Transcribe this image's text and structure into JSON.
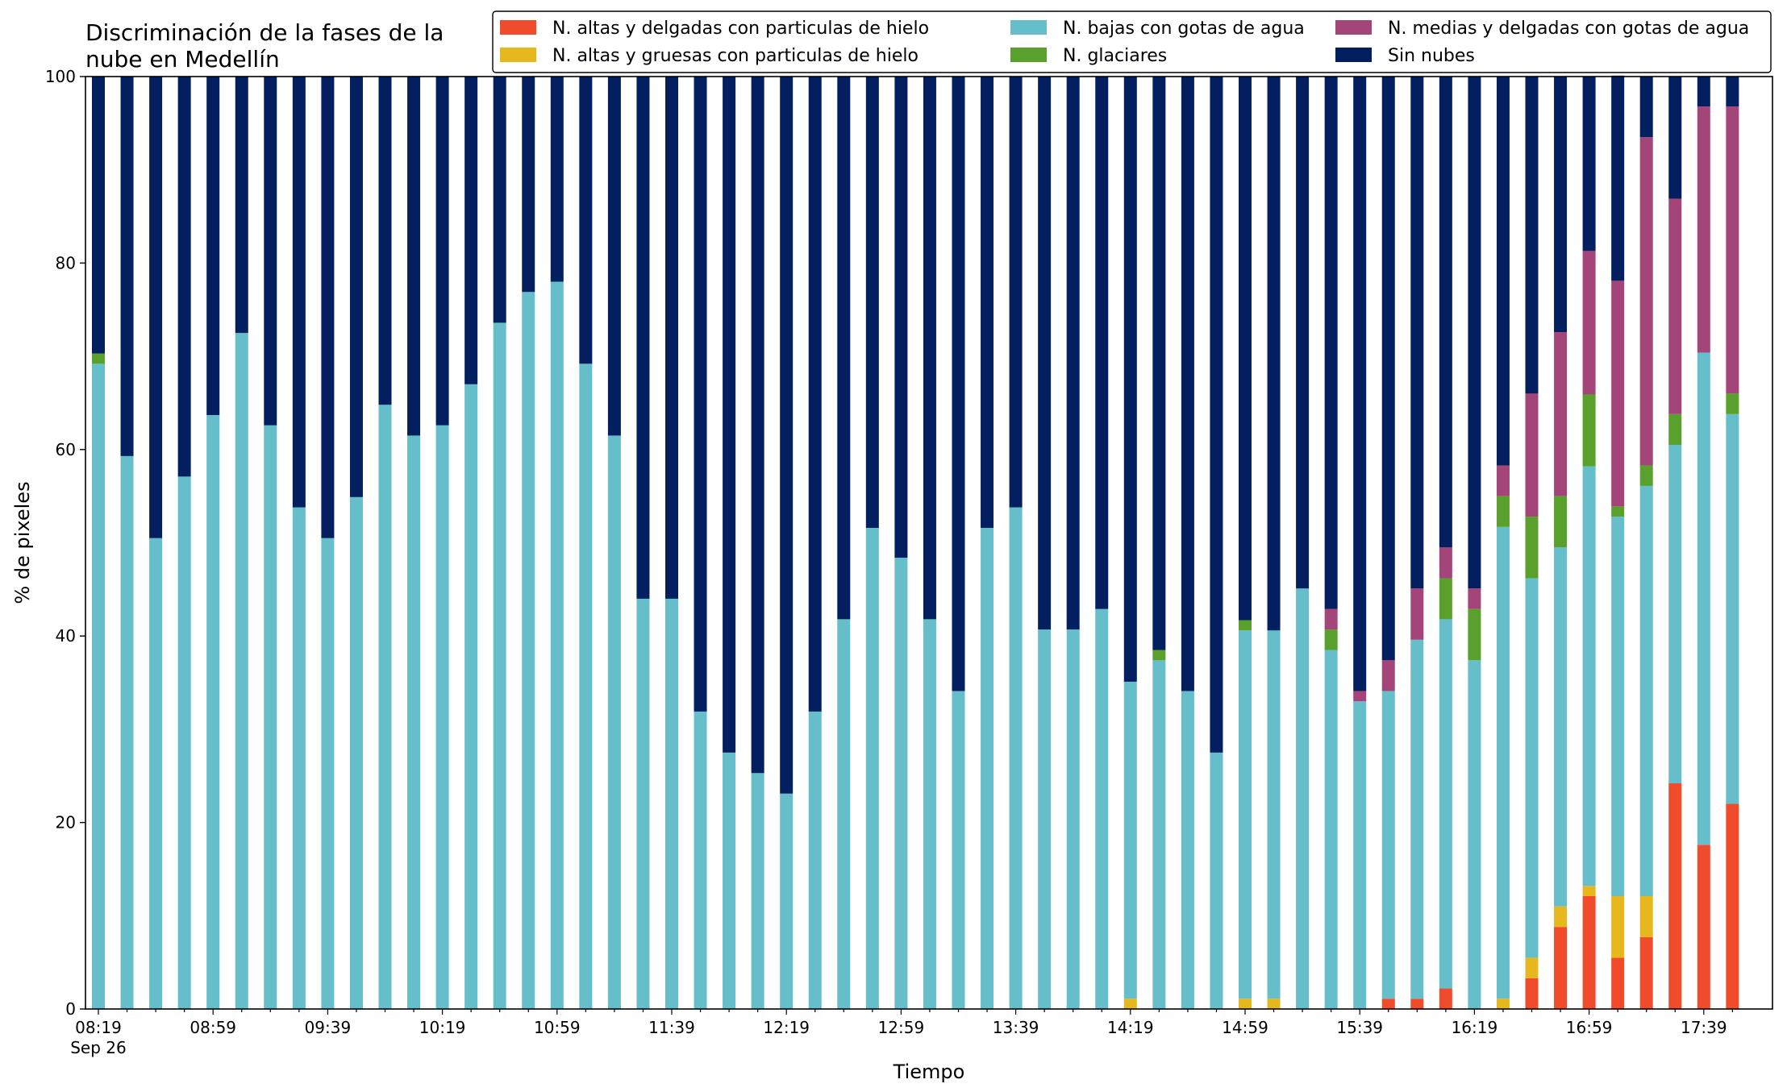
{
  "chart_data": {
    "type": "bar",
    "stacked": true,
    "title_lines": [
      "Discriminación de la fases de la",
      "nube en Medellín"
    ],
    "xlabel": "Tiempo",
    "ylabel": "% de pixeles",
    "ylim": [
      0,
      100
    ],
    "yticks": [
      0,
      20,
      40,
      60,
      80,
      100
    ],
    "legend_position": "top-right",
    "x_tick_labels": [
      {
        "label": "08:19",
        "sublabel": "Sep 26",
        "index": 0
      },
      {
        "label": "08:59",
        "index": 4
      },
      {
        "label": "09:39",
        "index": 8
      },
      {
        "label": "10:19",
        "index": 12
      },
      {
        "label": "10:59",
        "index": 16
      },
      {
        "label": "11:39",
        "index": 20
      },
      {
        "label": "12:19",
        "index": 24
      },
      {
        "label": "12:59",
        "index": 28
      },
      {
        "label": "13:39",
        "index": 32
      },
      {
        "label": "14:19",
        "index": 36
      },
      {
        "label": "14:59",
        "index": 40
      },
      {
        "label": "15:39",
        "index": 44
      },
      {
        "label": "16:19",
        "index": 48
      },
      {
        "label": "16:59",
        "index": 52
      },
      {
        "label": "17:39",
        "index": 56
      }
    ],
    "categories": [
      "08:19",
      "08:29",
      "08:39",
      "08:49",
      "08:59",
      "09:09",
      "09:19",
      "09:29",
      "09:39",
      "09:49",
      "09:59",
      "10:09",
      "10:19",
      "10:29",
      "10:39",
      "10:49",
      "10:59",
      "11:09",
      "11:19",
      "11:29",
      "11:39",
      "11:49",
      "11:59",
      "12:09",
      "12:19",
      "12:29",
      "12:39",
      "12:49",
      "12:59",
      "13:09",
      "13:19",
      "13:29",
      "13:39",
      "13:49",
      "13:59",
      "14:09",
      "14:19",
      "14:29",
      "14:39",
      "14:49",
      "14:59",
      "15:09",
      "15:19",
      "15:29",
      "15:39",
      "15:49",
      "15:59",
      "16:09",
      "16:19",
      "16:29",
      "16:39",
      "16:49",
      "16:59",
      "17:09",
      "17:19",
      "17:29",
      "17:39",
      "17:49"
    ],
    "series": [
      {
        "name": "N. altas y delgadas con particulas de hielo",
        "color": "#f04b2b",
        "values": [
          0,
          0,
          0,
          0,
          0,
          0,
          0,
          0,
          0,
          0,
          0,
          0,
          0,
          0,
          0,
          0,
          0,
          0,
          0,
          0,
          0,
          0,
          0,
          0,
          0,
          0,
          0,
          0,
          0,
          0,
          0,
          0,
          0,
          0,
          0,
          0,
          0,
          0,
          0,
          0,
          0,
          0,
          0,
          0,
          0,
          1.1,
          1.1,
          2.2,
          0,
          0,
          3.3,
          8.8,
          12.1,
          5.5,
          7.7,
          24.2,
          17.6,
          22
        ]
      },
      {
        "name": "N. altas y gruesas con particulas de hielo",
        "color": "#e6b81e",
        "values": [
          0,
          0,
          0,
          0,
          0,
          0,
          0,
          0,
          0,
          0,
          0,
          0,
          0,
          0,
          0,
          0,
          0,
          0,
          0,
          0,
          0,
          0,
          0,
          0,
          0,
          0,
          0,
          0,
          0,
          0,
          0,
          0,
          0,
          0,
          0,
          0,
          1.1,
          0,
          0,
          0,
          1.1,
          1.1,
          0,
          0,
          0,
          0,
          0,
          0,
          0,
          1.1,
          2.2,
          2.2,
          1.1,
          6.6,
          4.4,
          0,
          0,
          0
        ]
      },
      {
        "name": "N. bajas con gotas de agua",
        "color": "#65bec9",
        "values": [
          69.2,
          59.3,
          50.5,
          57.1,
          63.7,
          72.5,
          62.6,
          53.8,
          50.5,
          54.9,
          64.8,
          61.5,
          62.6,
          67,
          73.6,
          76.9,
          78,
          69.2,
          61.5,
          44,
          44,
          31.9,
          27.5,
          25.3,
          23.1,
          31.9,
          41.8,
          51.6,
          48.4,
          41.8,
          34.1,
          51.6,
          53.8,
          40.7,
          40.7,
          42.9,
          34,
          37.4,
          34.1,
          27.5,
          39.5,
          39.5,
          45.1,
          38.5,
          33,
          33,
          38.5,
          39.6,
          37.4,
          50.6,
          40.7,
          38.5,
          45,
          40.7,
          44,
          36.3,
          52.8,
          41.8
        ]
      },
      {
        "name": "N. glaciares",
        "color": "#5aa02c",
        "values": [
          1.1,
          0,
          0,
          0,
          0,
          0,
          0,
          0,
          0,
          0,
          0,
          0,
          0,
          0,
          0,
          0,
          0,
          0,
          0,
          0,
          0,
          0,
          0,
          0,
          0,
          0,
          0,
          0,
          0,
          0,
          0,
          0,
          0,
          0,
          0,
          0,
          0,
          1.1,
          0,
          0,
          1.1,
          0,
          0,
          2.2,
          0,
          0,
          0,
          4.4,
          5.5,
          3.3,
          6.6,
          5.5,
          7.7,
          1.1,
          2.2,
          3.3,
          0,
          2.2
        ]
      },
      {
        "name": "N. medias y delgadas con gotas de agua",
        "color": "#a4457a",
        "values": [
          0,
          0,
          0,
          0,
          0,
          0,
          0,
          0,
          0,
          0,
          0,
          0,
          0,
          0,
          0,
          0,
          0,
          0,
          0,
          0,
          0,
          0,
          0,
          0,
          0,
          0,
          0,
          0,
          0,
          0,
          0,
          0,
          0,
          0,
          0,
          0,
          0,
          0,
          0,
          0,
          0,
          0,
          0,
          2.2,
          1.1,
          3.3,
          5.5,
          3.3,
          2.2,
          3.3,
          13.2,
          17.6,
          15.4,
          24.2,
          35.2,
          23.1,
          26.4,
          30.8
        ]
      },
      {
        "name": "Sin nubes",
        "color": "#031f5f",
        "values": [
          29.7,
          40.7,
          49.5,
          42.9,
          36.3,
          27.5,
          37.4,
          46.2,
          49.5,
          45.1,
          35.2,
          38.5,
          37.4,
          33,
          26.4,
          23.1,
          22,
          30.8,
          38.5,
          56,
          56,
          68.1,
          72.5,
          74.7,
          76.9,
          68.1,
          58.2,
          48.4,
          51.6,
          58.2,
          65.9,
          48.4,
          46.2,
          59.3,
          59.3,
          57.1,
          64.9,
          61.5,
          65.9,
          72.5,
          58.3,
          59.4,
          54.9,
          57.1,
          65.9,
          62.6,
          54.9,
          50.5,
          54.9,
          41.7,
          34,
          27.4,
          18.7,
          22,
          6.5,
          13.1,
          3.2,
          3.2
        ]
      }
    ]
  }
}
